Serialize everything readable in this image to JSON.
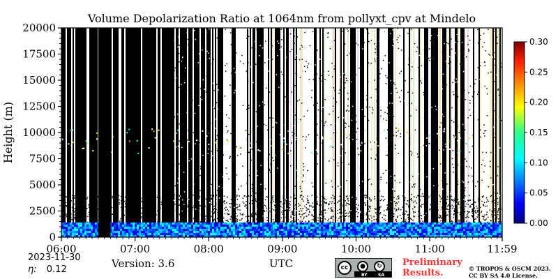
{
  "chart_data": {
    "type": "heatmap",
    "title": "Volume Depolarization Ratio at 1064nm from pollyxt_cpv at Mindelo",
    "xlabel": "UTC",
    "ylabel": "Height (m)",
    "xlim": [
      "06:00",
      "11:59"
    ],
    "ylim": [
      0,
      20000
    ],
    "x_ticks": [
      "06:00",
      "07:00",
      "08:00",
      "09:00",
      "10:00",
      "11:00",
      "11:59"
    ],
    "y_ticks": [
      "0",
      "2500",
      "5000",
      "7500",
      "10000",
      "12500",
      "15000",
      "17500",
      "20000"
    ],
    "colorbar": {
      "range": [
        0,
        0.3
      ],
      "ticks": [
        "0.00",
        "0.05",
        "0.10",
        "0.15",
        "0.20",
        "0.25",
        "0.30"
      ],
      "colormap": "jet"
    },
    "description_values": {
      "low_layer_top_m": 1400,
      "low_layer_value_range": [
        0.02,
        0.12
      ],
      "no_data_gap_utc": [
        "06:30",
        "06:40"
      ],
      "sparse_cloud_height_m": [
        8000,
        10500
      ]
    }
  },
  "footer": {
    "date": "2023-11-30",
    "eta_label": "η:",
    "eta_value": "0.12",
    "version": "Version: 3.6",
    "x_unit": "UTC",
    "cc_text": "cc",
    "cc_by": "BY",
    "cc_sa": "SA",
    "preliminary_line1": "Preliminary",
    "preliminary_line2": "Results.",
    "copyright_line1": "© TROPOS & OSCM 2023.",
    "copyright_line2": "CC BY SA 4.0 License.",
    "preliminary_color": "#ff3333"
  }
}
